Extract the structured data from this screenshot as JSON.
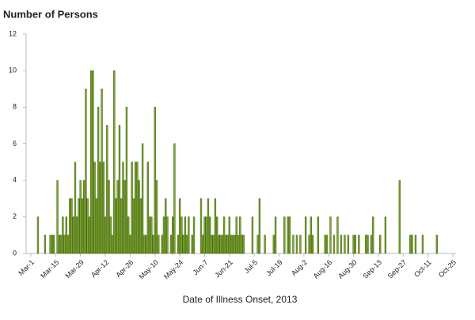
{
  "chart_data": {
    "type": "bar",
    "title": "Number of Persons",
    "xlabel": "Date of Illness Onset, 2013",
    "categories": [
      "Mar-1",
      null,
      null,
      null,
      null,
      null,
      null,
      null,
      null,
      null,
      null,
      null,
      null,
      null,
      "Mar-15",
      null,
      null,
      null,
      null,
      null,
      null,
      null,
      null,
      null,
      null,
      null,
      null,
      null,
      "Mar-29",
      null,
      null,
      null,
      null,
      null,
      null,
      null,
      null,
      null,
      null,
      null,
      null,
      null,
      "Apr-12",
      null,
      null,
      null,
      null,
      null,
      null,
      null,
      null,
      null,
      null,
      null,
      null,
      null,
      "Apr-26",
      null,
      null,
      null,
      null,
      null,
      null,
      null,
      null,
      null,
      null,
      null,
      null,
      null,
      "May-10",
      null,
      null,
      null,
      null,
      null,
      null,
      null,
      null,
      null,
      null,
      null,
      null,
      null,
      "May-24",
      null,
      null,
      null,
      null,
      null,
      null,
      null,
      null,
      null,
      null,
      null,
      null,
      null,
      "Jun-7",
      null,
      null,
      null,
      null,
      null,
      null,
      null,
      null,
      null,
      null,
      null,
      null,
      null,
      "Jun-21",
      null,
      null,
      null,
      null,
      null,
      null,
      null,
      null,
      null,
      null,
      null,
      null,
      null,
      "Jul-5",
      null,
      null,
      null,
      null,
      null,
      null,
      null,
      null,
      null,
      null,
      null,
      null,
      null,
      "Jul-19",
      null,
      null,
      null,
      null,
      null,
      null,
      null,
      null,
      null,
      null,
      null,
      null,
      null,
      "Aug-2",
      null,
      null,
      null,
      null,
      null,
      null,
      null,
      null,
      null,
      null,
      null,
      null,
      null,
      "Aug-16",
      null,
      null,
      null,
      null,
      null,
      null,
      null,
      null,
      null,
      null,
      null,
      null,
      null,
      "Aug-30",
      null,
      null,
      null,
      null,
      null,
      null,
      null,
      null,
      null,
      null,
      null,
      null,
      null,
      "Sep-13",
      null,
      null,
      null,
      null,
      null,
      null,
      null,
      null,
      null,
      null,
      null,
      null,
      null,
      "Sep-27",
      null,
      null,
      null,
      null,
      null,
      null,
      null,
      null,
      null,
      null,
      null,
      null,
      null,
      "Oct-11",
      null,
      null,
      null,
      null,
      null,
      null,
      null,
      null,
      null,
      null,
      null,
      null,
      null,
      "Oct-25"
    ],
    "values": [
      0,
      0,
      0,
      0,
      2,
      0,
      0,
      0,
      1,
      0,
      0,
      1,
      1,
      1,
      0,
      4,
      1,
      1,
      2,
      1,
      2,
      1,
      3,
      3,
      2,
      5,
      2,
      3,
      4,
      3,
      4,
      9,
      3,
      2,
      10,
      10,
      5,
      3,
      8,
      5,
      9,
      5,
      2,
      7,
      4,
      2,
      1,
      10,
      3,
      4,
      7,
      3,
      5,
      4,
      8,
      2,
      1,
      5,
      3,
      5,
      5,
      4,
      3,
      6,
      1,
      1,
      5,
      2,
      2,
      1,
      8,
      4,
      1,
      0,
      1,
      2,
      3,
      2,
      0,
      1,
      2,
      6,
      0,
      1,
      3,
      2,
      1,
      2,
      1,
      2,
      0,
      1,
      2,
      0,
      0,
      0,
      3,
      1,
      2,
      2,
      3,
      2,
      1,
      1,
      3,
      2,
      1,
      1,
      1,
      2,
      1,
      1,
      2,
      1,
      1,
      1,
      2,
      1,
      2,
      1,
      1,
      0,
      0,
      0,
      0,
      2,
      0,
      0,
      1,
      3,
      0,
      0,
      1,
      0,
      0,
      0,
      0,
      1,
      2,
      0,
      0,
      0,
      0,
      2,
      0,
      2,
      2,
      0,
      1,
      0,
      1,
      0,
      1,
      0,
      0,
      2,
      0,
      1,
      2,
      1,
      0,
      0,
      2,
      0,
      0,
      0,
      1,
      1,
      0,
      2,
      0,
      1,
      0,
      2,
      0,
      1,
      0,
      1,
      0,
      1,
      0,
      0,
      1,
      1,
      0,
      1,
      0,
      0,
      0,
      1,
      1,
      0,
      1,
      2,
      0,
      0,
      0,
      1,
      0,
      0,
      2,
      0,
      0,
      0,
      0,
      0,
      0,
      0,
      4,
      0,
      0,
      0,
      0,
      0,
      1,
      1,
      0,
      1,
      0,
      0,
      0,
      1,
      0,
      0,
      0,
      0,
      0,
      0,
      0,
      1,
      0,
      0,
      0,
      0,
      0,
      0,
      0,
      0,
      0
    ],
    "color": "#7ca82b",
    "ylim": [
      0,
      12
    ],
    "yticks": [
      0,
      2,
      4,
      6,
      8,
      10,
      12
    ],
    "grid": false
  }
}
